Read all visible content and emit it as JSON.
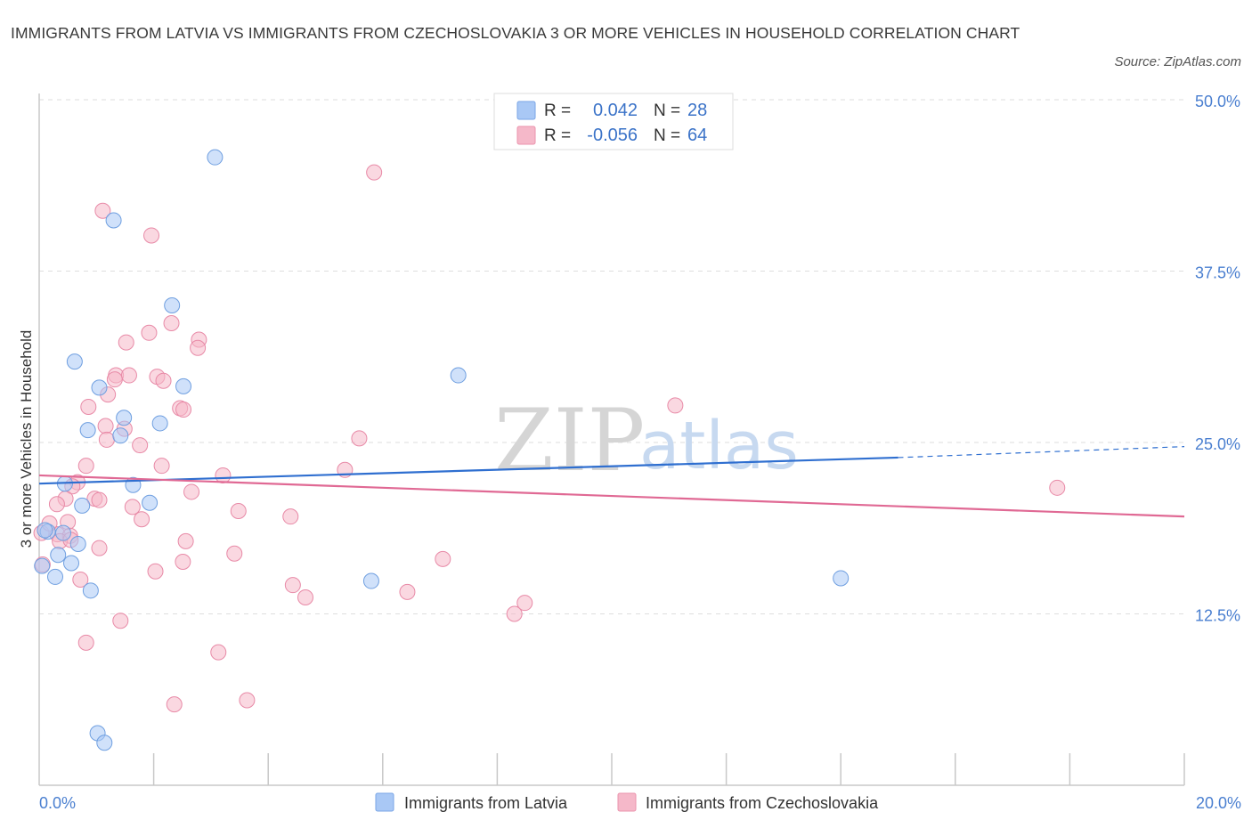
{
  "title": "IMMIGRANTS FROM LATVIA VS IMMIGRANTS FROM CZECHOSLOVAKIA 3 OR MORE VEHICLES IN HOUSEHOLD CORRELATION CHART",
  "source": "Source: ZipAtlas.com",
  "watermark": {
    "zip": "ZIP",
    "atlas": "atlas"
  },
  "legend_top": {
    "rows": [
      {
        "r_label": "R =",
        "r_value": "0.042",
        "n_label": "N =",
        "n_value": "28",
        "color": "#a9c8f5"
      },
      {
        "r_label": "R =",
        "r_value": "-0.056",
        "n_label": "N =",
        "n_value": "64",
        "color": "#f5b8c9"
      }
    ]
  },
  "legend_bottom": {
    "items": [
      {
        "label": "Immigrants from Latvia",
        "color": "#a9c8f5"
      },
      {
        "label": "Immigrants from Czechoslovakia",
        "color": "#f5b8c9"
      }
    ]
  },
  "chart_data": {
    "type": "scatter",
    "title": "IMMIGRANTS FROM LATVIA VS IMMIGRANTS FROM CZECHOSLOVAKIA 3 OR MORE VEHICLES IN HOUSEHOLD CORRELATION CHART",
    "xlabel": "",
    "ylabel": "3 or more Vehicles in Household",
    "xlim": [
      0,
      20
    ],
    "ylim": [
      0,
      50
    ],
    "x_tick_labels": [
      "0.0%",
      "20.0%"
    ],
    "y_ticks": [
      12.5,
      25.0,
      37.5,
      50.0
    ],
    "y_tick_labels": [
      "12.5%",
      "25.0%",
      "37.5%",
      "50.0%"
    ],
    "grid": true,
    "legend_position": "top-center",
    "series": [
      {
        "name": "Immigrants from Latvia",
        "color": "#a9c8f5",
        "line_color": "#2f6fd0",
        "trend": {
          "x0": 0,
          "y0": 22.0,
          "x1": 15.0,
          "y1": 23.9,
          "dashed_x1": 20,
          "dashed_y1": 24.7
        },
        "points": [
          [
            3.07,
            45.8
          ],
          [
            1.3,
            41.2
          ],
          [
            2.32,
            35.0
          ],
          [
            0.62,
            30.9
          ],
          [
            7.32,
            29.9
          ],
          [
            1.05,
            29.0
          ],
          [
            2.52,
            29.1
          ],
          [
            1.48,
            26.8
          ],
          [
            2.11,
            26.4
          ],
          [
            0.85,
            25.9
          ],
          [
            1.42,
            25.5
          ],
          [
            0.45,
            22.0
          ],
          [
            1.64,
            21.9
          ],
          [
            1.93,
            20.6
          ],
          [
            0.75,
            20.4
          ],
          [
            0.15,
            18.5
          ],
          [
            0.42,
            18.4
          ],
          [
            0.68,
            17.6
          ],
          [
            0.33,
            16.8
          ],
          [
            0.56,
            16.2
          ],
          [
            0.05,
            16.0
          ],
          [
            0.28,
            15.2
          ],
          [
            5.8,
            14.9
          ],
          [
            14.0,
            15.1
          ],
          [
            0.9,
            14.2
          ],
          [
            1.02,
            3.8
          ],
          [
            1.14,
            3.1
          ],
          [
            0.1,
            18.6
          ]
        ]
      },
      {
        "name": "Immigrants from Czechoslovakia",
        "color": "#f5b8c9",
        "line_color": "#e06994",
        "trend": {
          "x0": 0,
          "y0": 22.6,
          "x1": 20,
          "y1": 19.6
        },
        "points": [
          [
            5.85,
            44.7
          ],
          [
            1.11,
            41.9
          ],
          [
            1.96,
            40.1
          ],
          [
            1.92,
            33.0
          ],
          [
            2.31,
            33.7
          ],
          [
            1.52,
            32.3
          ],
          [
            2.79,
            32.5
          ],
          [
            2.77,
            31.9
          ],
          [
            1.34,
            29.9
          ],
          [
            1.57,
            29.9
          ],
          [
            2.06,
            29.8
          ],
          [
            2.17,
            29.5
          ],
          [
            1.32,
            29.6
          ],
          [
            1.2,
            28.5
          ],
          [
            0.86,
            27.6
          ],
          [
            2.46,
            27.5
          ],
          [
            2.52,
            27.4
          ],
          [
            11.11,
            27.7
          ],
          [
            1.16,
            26.2
          ],
          [
            1.49,
            26.0
          ],
          [
            1.18,
            25.2
          ],
          [
            5.59,
            25.3
          ],
          [
            1.76,
            24.8
          ],
          [
            0.82,
            23.3
          ],
          [
            2.14,
            23.3
          ],
          [
            5.34,
            23.0
          ],
          [
            3.21,
            22.6
          ],
          [
            0.67,
            22.1
          ],
          [
            0.58,
            21.8
          ],
          [
            2.66,
            21.4
          ],
          [
            0.46,
            20.9
          ],
          [
            0.97,
            20.9
          ],
          [
            1.05,
            20.8
          ],
          [
            0.31,
            20.5
          ],
          [
            1.63,
            20.3
          ],
          [
            3.48,
            20.0
          ],
          [
            4.39,
            19.6
          ],
          [
            0.5,
            19.2
          ],
          [
            1.79,
            19.4
          ],
          [
            17.78,
            21.7
          ],
          [
            0.32,
            18.3
          ],
          [
            0.04,
            18.4
          ],
          [
            0.54,
            18.2
          ],
          [
            0.36,
            17.8
          ],
          [
            2.56,
            17.8
          ],
          [
            1.05,
            17.3
          ],
          [
            3.41,
            16.9
          ],
          [
            7.05,
            16.5
          ],
          [
            2.51,
            16.3
          ],
          [
            0.06,
            16.1
          ],
          [
            2.03,
            15.6
          ],
          [
            0.72,
            15.0
          ],
          [
            4.43,
            14.6
          ],
          [
            6.43,
            14.1
          ],
          [
            4.65,
            13.7
          ],
          [
            8.48,
            13.3
          ],
          [
            8.3,
            12.5
          ],
          [
            1.42,
            12.0
          ],
          [
            0.82,
            10.4
          ],
          [
            3.13,
            9.7
          ],
          [
            2.36,
            5.9
          ],
          [
            3.63,
            6.2
          ],
          [
            0.55,
            17.9
          ],
          [
            0.18,
            19.1
          ]
        ]
      }
    ]
  }
}
